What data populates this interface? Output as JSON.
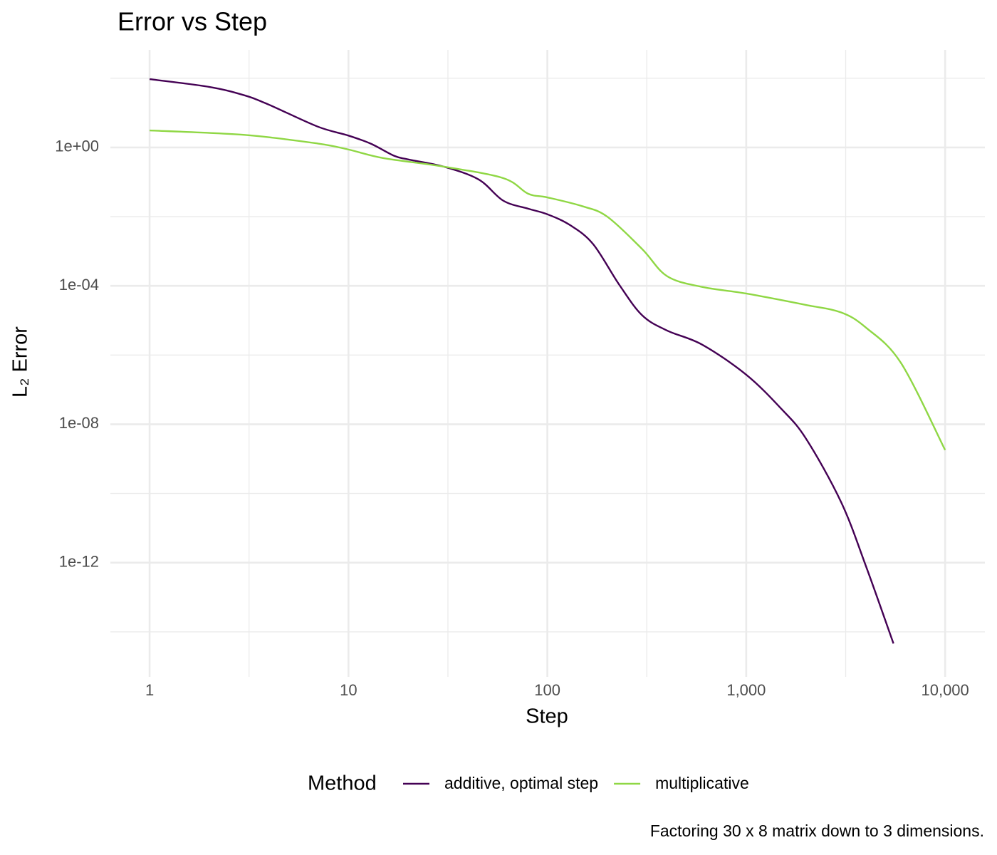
{
  "chart_data": {
    "type": "line",
    "title": "Error vs Step",
    "xlabel": "Step",
    "ylabel": "L₂ Error",
    "caption": "Factoring 30 x 8 matrix down to 3 dimensions.",
    "legend_title": "Method",
    "legend_position": "bottom",
    "xscale": "log",
    "yscale": "log",
    "grid": true,
    "xlim": [
      0.635,
      15850
    ],
    "ylim": [
      5e-16,
      660
    ],
    "xticks": [
      1,
      10,
      100,
      {
        "value": 1000,
        "label": "1,000"
      },
      {
        "value": 10000,
        "label": "10,000"
      }
    ],
    "yticks": [
      {
        "value": 1,
        "label": "1e+00"
      },
      {
        "value": 0.0001,
        "label": "1e-04"
      },
      {
        "value": 1e-08,
        "label": "1e-08"
      },
      {
        "value": 1e-12,
        "label": "1e-12"
      }
    ],
    "xminor": [
      3.162,
      31.62,
      316.2,
      3162
    ],
    "yminor": [
      100,
      0.01,
      1e-06,
      1e-10,
      1e-14
    ],
    "series": [
      {
        "name": "additive, optimal step",
        "color": "#440154",
        "x": [
          1,
          2,
          3,
          4,
          7,
          10,
          13,
          17,
          20,
          30,
          45,
          60,
          80,
          100,
          130,
          170,
          230,
          300,
          400,
          600,
          1000,
          1500,
          2000,
          3000,
          4000,
          5500
        ],
        "values": [
          94,
          56,
          32,
          17,
          4,
          2.2,
          1.27,
          0.57,
          0.45,
          0.28,
          0.12,
          0.029,
          0.017,
          0.0117,
          0.0057,
          0.0016,
          0.000107,
          1.4e-05,
          5.1e-06,
          2e-06,
          2.7e-07,
          2.8e-08,
          3.8e-09,
          5.6e-11,
          7.9e-13,
          4.6e-15
        ]
      },
      {
        "name": "multiplicative",
        "color": "#8fd744",
        "x": [
          1,
          3,
          7,
          10,
          15,
          30,
          60,
          80,
          100,
          150,
          200,
          300,
          400,
          600,
          1000,
          2000,
          3000,
          4000,
          6000,
          10000
        ],
        "values": [
          3.1,
          2.3,
          1.3,
          0.87,
          0.49,
          0.28,
          0.13,
          0.046,
          0.036,
          0.02,
          0.01,
          0.00115,
          0.00019,
          9.3e-05,
          6e-05,
          2.8e-05,
          1.7e-05,
          6.2e-06,
          5.9e-07,
          1.8e-09
        ]
      }
    ]
  }
}
